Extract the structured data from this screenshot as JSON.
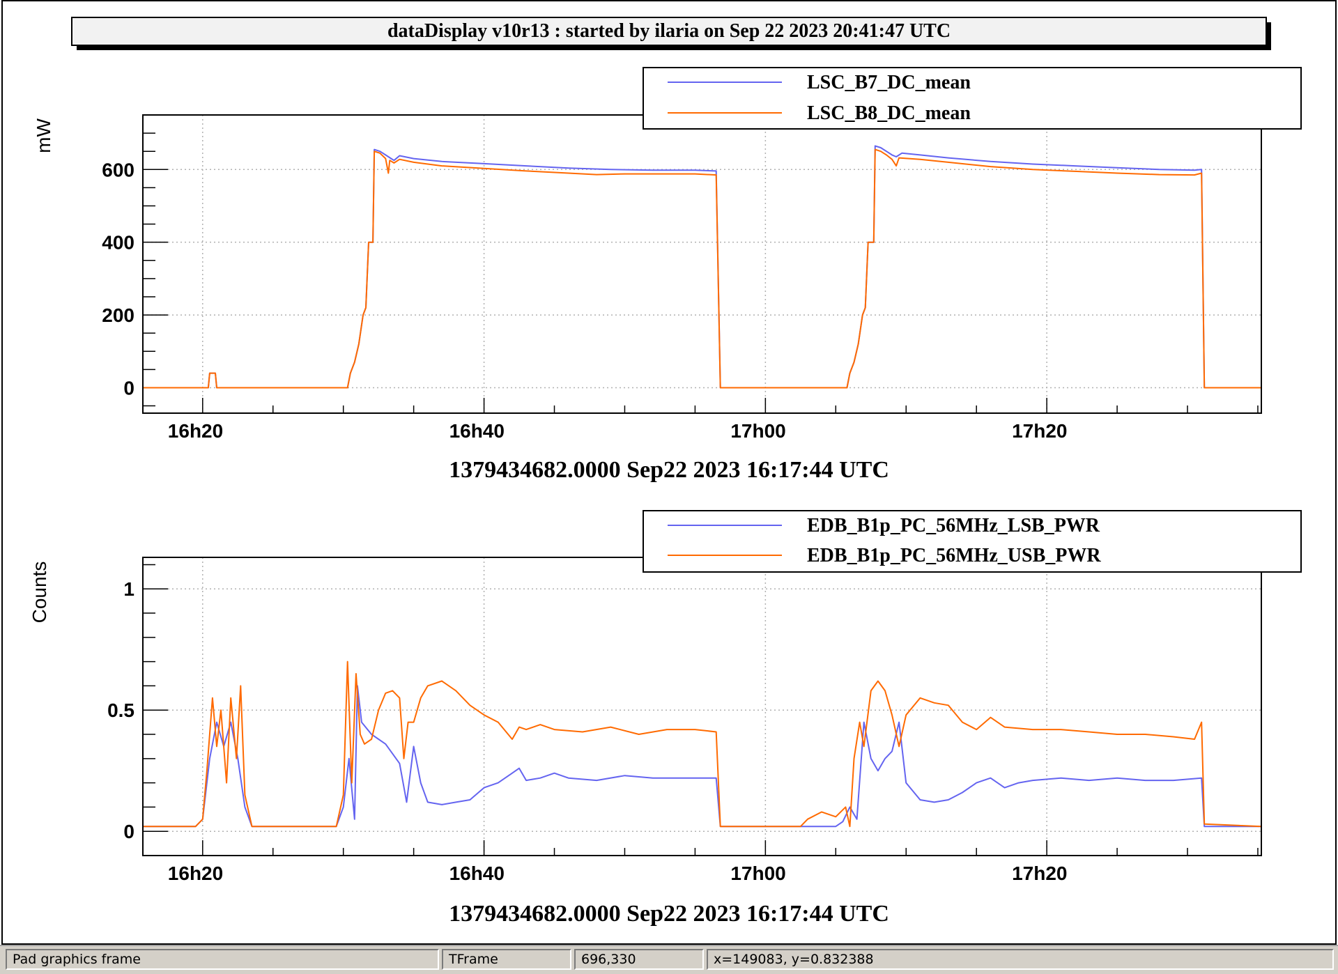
{
  "title": "dataDisplay v10r13 : started by ilaria on Sep 22 2023 20:41:47 UTC",
  "colors": {
    "blue": "#6464f0",
    "orange": "#ff6a00",
    "grid": "#b0b0b0",
    "statusbar": "#d4d0c8"
  },
  "status": {
    "object": "Pad graphics frame",
    "class": "TFrame",
    "pixel": "696,330",
    "coords": "x=149083, y=0.832388"
  },
  "chart_data": [
    {
      "type": "line",
      "ylabel": "mW",
      "xlabel": "1379434682.0000 Sep22 2023 16:17:44 UTC",
      "x_unit": "minutes after 16:00 UTC",
      "xlim": [
        15.75,
        95.25
      ],
      "ylim": [
        -70,
        750
      ],
      "x_ticks": [
        {
          "v": 20,
          "label": "16h20"
        },
        {
          "v": 40,
          "label": "16h40"
        },
        {
          "v": 60,
          "label": "17h00"
        },
        {
          "v": 80,
          "label": "17h20"
        }
      ],
      "y_ticks": [
        {
          "v": 0,
          "label": "0"
        },
        {
          "v": 200,
          "label": "200"
        },
        {
          "v": 400,
          "label": "400"
        },
        {
          "v": 600,
          "label": "600"
        }
      ],
      "legend": "top-right",
      "series": [
        {
          "name": "LSC_B7_DC_mean",
          "color": "#6464f0",
          "points": [
            [
              15.75,
              0
            ],
            [
              20.4,
              0
            ],
            [
              20.5,
              40
            ],
            [
              20.9,
              40
            ],
            [
              21.0,
              0
            ],
            [
              30.3,
              0
            ],
            [
              30.5,
              40
            ],
            [
              30.8,
              70
            ],
            [
              31.1,
              120
            ],
            [
              31.4,
              200
            ],
            [
              31.6,
              220
            ],
            [
              31.8,
              400
            ],
            [
              32.1,
              400
            ],
            [
              32.2,
              655
            ],
            [
              32.6,
              650
            ],
            [
              33.0,
              640
            ],
            [
              33.4,
              630
            ],
            [
              33.6,
              625
            ],
            [
              34.0,
              638
            ],
            [
              35.0,
              630
            ],
            [
              37.0,
              622
            ],
            [
              40.0,
              616
            ],
            [
              43.0,
              610
            ],
            [
              46.0,
              604
            ],
            [
              49.0,
              600
            ],
            [
              52.0,
              598
            ],
            [
              55.0,
              598
            ],
            [
              56.5,
              596
            ],
            [
              56.8,
              0
            ],
            [
              65.8,
              0
            ],
            [
              66.0,
              40
            ],
            [
              66.3,
              70
            ],
            [
              66.6,
              120
            ],
            [
              66.9,
              200
            ],
            [
              67.1,
              220
            ],
            [
              67.3,
              400
            ],
            [
              67.7,
              400
            ],
            [
              67.8,
              665
            ],
            [
              68.2,
              660
            ],
            [
              68.6,
              650
            ],
            [
              69.0,
              640
            ],
            [
              69.3,
              635
            ],
            [
              69.7,
              645
            ],
            [
              71.0,
              640
            ],
            [
              73.0,
              632
            ],
            [
              76.0,
              622
            ],
            [
              79.0,
              615
            ],
            [
              82.0,
              610
            ],
            [
              85.0,
              605
            ],
            [
              88.0,
              600
            ],
            [
              90.5,
              598
            ],
            [
              91.0,
              600
            ],
            [
              91.2,
              0
            ],
            [
              95.25,
              0
            ]
          ]
        },
        {
          "name": "LSC_B8_DC_mean",
          "color": "#ff6a00",
          "points": [
            [
              15.75,
              0
            ],
            [
              20.4,
              0
            ],
            [
              20.5,
              40
            ],
            [
              20.9,
              40
            ],
            [
              21.0,
              0
            ],
            [
              30.3,
              0
            ],
            [
              30.5,
              40
            ],
            [
              30.8,
              70
            ],
            [
              31.1,
              120
            ],
            [
              31.4,
              200
            ],
            [
              31.6,
              220
            ],
            [
              31.8,
              400
            ],
            [
              32.1,
              400
            ],
            [
              32.2,
              650
            ],
            [
              32.6,
              645
            ],
            [
              33.0,
              630
            ],
            [
              33.2,
              590
            ],
            [
              33.3,
              625
            ],
            [
              33.6,
              618
            ],
            [
              34.0,
              628
            ],
            [
              35.0,
              620
            ],
            [
              37.0,
              610
            ],
            [
              40.0,
              603
            ],
            [
              43.0,
              596
            ],
            [
              46.0,
              590
            ],
            [
              48.0,
              586
            ],
            [
              50.0,
              588
            ],
            [
              52.0,
              588
            ],
            [
              55.0,
              588
            ],
            [
              56.5,
              585
            ],
            [
              56.8,
              0
            ],
            [
              65.8,
              0
            ],
            [
              66.0,
              40
            ],
            [
              66.3,
              70
            ],
            [
              66.6,
              120
            ],
            [
              66.9,
              200
            ],
            [
              67.1,
              220
            ],
            [
              67.3,
              400
            ],
            [
              67.7,
              400
            ],
            [
              67.8,
              655
            ],
            [
              68.2,
              650
            ],
            [
              68.6,
              640
            ],
            [
              69.0,
              628
            ],
            [
              69.3,
              610
            ],
            [
              69.5,
              632
            ],
            [
              71.0,
              628
            ],
            [
              73.0,
              620
            ],
            [
              76.0,
              608
            ],
            [
              79.0,
              600
            ],
            [
              82.0,
              595
            ],
            [
              85.0,
              590
            ],
            [
              88.0,
              586
            ],
            [
              90.5,
              585
            ],
            [
              91.0,
              590
            ],
            [
              91.2,
              0
            ],
            [
              95.25,
              0
            ]
          ]
        }
      ]
    },
    {
      "type": "line",
      "ylabel": "Counts",
      "xlabel": "1379434682.0000 Sep22 2023 16:17:44 UTC",
      "x_unit": "minutes after 16:00 UTC",
      "xlim": [
        15.75,
        95.25
      ],
      "ylim": [
        -0.1,
        1.13
      ],
      "x_ticks": [
        {
          "v": 20,
          "label": "16h20"
        },
        {
          "v": 40,
          "label": "16h40"
        },
        {
          "v": 60,
          "label": "17h00"
        },
        {
          "v": 80,
          "label": "17h20"
        }
      ],
      "y_ticks": [
        {
          "v": 0,
          "label": "0"
        },
        {
          "v": 0.5,
          "label": "0.5"
        },
        {
          "v": 1,
          "label": "1"
        }
      ],
      "legend": "top-right",
      "series": [
        {
          "name": "EDB_B1p_PC_56MHz_LSB_PWR",
          "color": "#6464f0",
          "points": [
            [
              15.75,
              0.02
            ],
            [
              19.5,
              0.02
            ],
            [
              20.0,
              0.05
            ],
            [
              20.5,
              0.3
            ],
            [
              21.0,
              0.45
            ],
            [
              21.5,
              0.35
            ],
            [
              22.0,
              0.45
            ],
            [
              22.5,
              0.3
            ],
            [
              23.0,
              0.1
            ],
            [
              23.5,
              0.02
            ],
            [
              29.5,
              0.02
            ],
            [
              30.0,
              0.1
            ],
            [
              30.4,
              0.3
            ],
            [
              30.8,
              0.05
            ],
            [
              31.0,
              0.6
            ],
            [
              31.3,
              0.45
            ],
            [
              32.0,
              0.4
            ],
            [
              33.0,
              0.36
            ],
            [
              34.0,
              0.28
            ],
            [
              34.5,
              0.12
            ],
            [
              35.0,
              0.35
            ],
            [
              35.5,
              0.2
            ],
            [
              36.0,
              0.12
            ],
            [
              37.0,
              0.11
            ],
            [
              38.0,
              0.12
            ],
            [
              39.0,
              0.13
            ],
            [
              40.0,
              0.18
            ],
            [
              41.0,
              0.2
            ],
            [
              42.0,
              0.24
            ],
            [
              42.5,
              0.26
            ],
            [
              43.0,
              0.21
            ],
            [
              44.0,
              0.22
            ],
            [
              45.0,
              0.24
            ],
            [
              46.0,
              0.22
            ],
            [
              48.0,
              0.21
            ],
            [
              50.0,
              0.23
            ],
            [
              52.0,
              0.22
            ],
            [
              54.0,
              0.22
            ],
            [
              56.5,
              0.22
            ],
            [
              56.8,
              0.02
            ],
            [
              65.0,
              0.02
            ],
            [
              65.5,
              0.04
            ],
            [
              66.0,
              0.1
            ],
            [
              66.5,
              0.05
            ],
            [
              67.0,
              0.45
            ],
            [
              67.5,
              0.3
            ],
            [
              68.0,
              0.25
            ],
            [
              68.5,
              0.3
            ],
            [
              69.0,
              0.33
            ],
            [
              69.5,
              0.45
            ],
            [
              70.0,
              0.2
            ],
            [
              71.0,
              0.13
            ],
            [
              72.0,
              0.12
            ],
            [
              73.0,
              0.13
            ],
            [
              74.0,
              0.16
            ],
            [
              75.0,
              0.2
            ],
            [
              76.0,
              0.22
            ],
            [
              77.0,
              0.18
            ],
            [
              78.0,
              0.2
            ],
            [
              79.0,
              0.21
            ],
            [
              81.0,
              0.22
            ],
            [
              83.0,
              0.21
            ],
            [
              85.0,
              0.22
            ],
            [
              87.0,
              0.21
            ],
            [
              89.0,
              0.21
            ],
            [
              91.0,
              0.22
            ],
            [
              91.2,
              0.02
            ],
            [
              95.25,
              0.02
            ]
          ]
        },
        {
          "name": "EDB_B1p_PC_56MHz_USB_PWR",
          "color": "#ff6a00",
          "points": [
            [
              15.75,
              0.02
            ],
            [
              19.5,
              0.02
            ],
            [
              20.0,
              0.05
            ],
            [
              20.3,
              0.25
            ],
            [
              20.7,
              0.55
            ],
            [
              21.0,
              0.35
            ],
            [
              21.3,
              0.5
            ],
            [
              21.7,
              0.2
            ],
            [
              22.0,
              0.55
            ],
            [
              22.4,
              0.3
            ],
            [
              22.7,
              0.6
            ],
            [
              23.0,
              0.15
            ],
            [
              23.5,
              0.02
            ],
            [
              29.5,
              0.02
            ],
            [
              30.0,
              0.15
            ],
            [
              30.3,
              0.7
            ],
            [
              30.6,
              0.2
            ],
            [
              30.9,
              0.65
            ],
            [
              31.2,
              0.4
            ],
            [
              31.5,
              0.36
            ],
            [
              32.0,
              0.38
            ],
            [
              32.5,
              0.5
            ],
            [
              33.0,
              0.57
            ],
            [
              33.5,
              0.58
            ],
            [
              34.0,
              0.55
            ],
            [
              34.3,
              0.3
            ],
            [
              34.6,
              0.45
            ],
            [
              35.0,
              0.45
            ],
            [
              35.5,
              0.55
            ],
            [
              36.0,
              0.6
            ],
            [
              37.0,
              0.62
            ],
            [
              38.0,
              0.58
            ],
            [
              39.0,
              0.52
            ],
            [
              40.0,
              0.48
            ],
            [
              41.0,
              0.45
            ],
            [
              42.0,
              0.38
            ],
            [
              42.5,
              0.43
            ],
            [
              43.0,
              0.42
            ],
            [
              44.0,
              0.44
            ],
            [
              45.0,
              0.42
            ],
            [
              47.0,
              0.41
            ],
            [
              49.0,
              0.43
            ],
            [
              51.0,
              0.4
            ],
            [
              53.0,
              0.42
            ],
            [
              55.0,
              0.42
            ],
            [
              56.5,
              0.41
            ],
            [
              56.8,
              0.02
            ],
            [
              62.5,
              0.02
            ],
            [
              63.0,
              0.05
            ],
            [
              64.0,
              0.08
            ],
            [
              65.0,
              0.06
            ],
            [
              65.7,
              0.1
            ],
            [
              66.0,
              0.02
            ],
            [
              66.3,
              0.3
            ],
            [
              66.7,
              0.45
            ],
            [
              67.0,
              0.35
            ],
            [
              67.5,
              0.58
            ],
            [
              68.0,
              0.62
            ],
            [
              68.5,
              0.58
            ],
            [
              69.0,
              0.48
            ],
            [
              69.5,
              0.35
            ],
            [
              70.0,
              0.48
            ],
            [
              71.0,
              0.55
            ],
            [
              72.0,
              0.53
            ],
            [
              73.0,
              0.52
            ],
            [
              74.0,
              0.45
            ],
            [
              75.0,
              0.42
            ],
            [
              76.0,
              0.47
            ],
            [
              77.0,
              0.43
            ],
            [
              79.0,
              0.42
            ],
            [
              81.0,
              0.42
            ],
            [
              83.0,
              0.41
            ],
            [
              85.0,
              0.4
            ],
            [
              87.0,
              0.4
            ],
            [
              89.0,
              0.39
            ],
            [
              90.5,
              0.38
            ],
            [
              91.0,
              0.45
            ],
            [
              91.2,
              0.03
            ],
            [
              95.25,
              0.02
            ]
          ]
        }
      ]
    }
  ]
}
